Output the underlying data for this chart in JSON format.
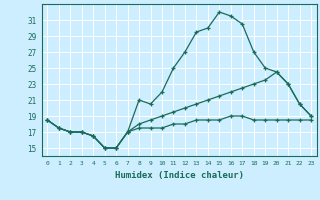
{
  "xlabel": "Humidex (Indice chaleur)",
  "bg_color": "#cceeff",
  "grid_color": "#ffffff",
  "line_color": "#1a6b5a",
  "xlim": [
    -0.5,
    23.5
  ],
  "ylim": [
    14.0,
    33.0
  ],
  "xticks": [
    0,
    1,
    2,
    3,
    4,
    5,
    6,
    7,
    8,
    9,
    10,
    11,
    12,
    13,
    14,
    15,
    16,
    17,
    18,
    19,
    20,
    21,
    22,
    23
  ],
  "yticks": [
    15,
    17,
    19,
    21,
    23,
    25,
    27,
    29,
    31
  ],
  "line1_x": [
    0,
    1,
    2,
    3,
    4,
    5,
    6,
    7,
    8,
    9,
    10,
    11,
    12,
    13,
    14,
    15,
    16,
    17,
    18,
    19,
    20,
    21,
    22,
    23
  ],
  "line1_y": [
    18.5,
    17.5,
    17.0,
    17.0,
    16.5,
    15.0,
    15.0,
    17.0,
    21.0,
    20.5,
    22.0,
    25.0,
    27.0,
    29.5,
    30.0,
    32.0,
    31.5,
    30.5,
    27.0,
    25.0,
    24.5,
    23.0,
    20.5,
    19.0
  ],
  "line2_x": [
    0,
    1,
    2,
    3,
    4,
    5,
    6,
    7,
    8,
    9,
    10,
    11,
    12,
    13,
    14,
    15,
    16,
    17,
    18,
    19,
    20,
    21,
    22,
    23
  ],
  "line2_y": [
    18.5,
    17.5,
    17.0,
    17.0,
    16.5,
    15.0,
    15.0,
    17.0,
    18.0,
    18.5,
    19.0,
    19.5,
    20.0,
    20.5,
    21.0,
    21.5,
    22.0,
    22.5,
    23.0,
    23.5,
    24.5,
    23.0,
    20.5,
    19.0
  ],
  "line3_x": [
    0,
    1,
    2,
    3,
    4,
    5,
    6,
    7,
    8,
    9,
    10,
    11,
    12,
    13,
    14,
    15,
    16,
    17,
    18,
    19,
    20,
    21,
    22,
    23
  ],
  "line3_y": [
    18.5,
    17.5,
    17.0,
    17.0,
    16.5,
    15.0,
    15.0,
    17.0,
    17.5,
    17.5,
    17.5,
    18.0,
    18.0,
    18.5,
    18.5,
    18.5,
    19.0,
    19.0,
    18.5,
    18.5,
    18.5,
    18.5,
    18.5,
    18.5
  ]
}
